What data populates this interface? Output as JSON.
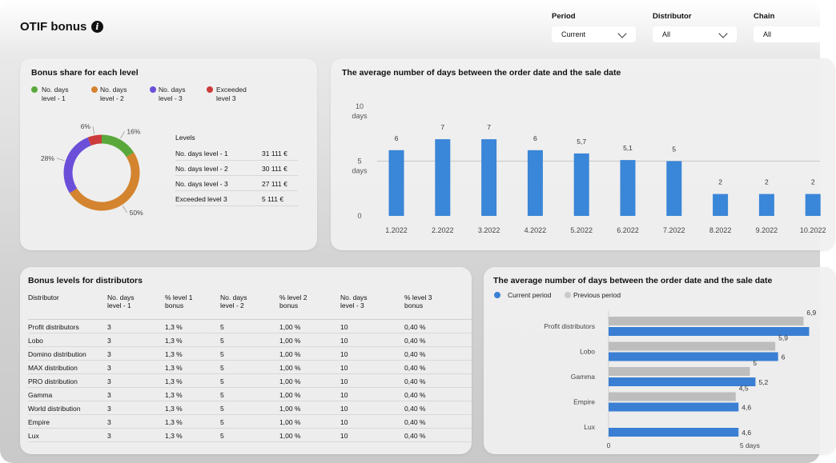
{
  "header": {
    "title": "OTIF bonus",
    "info_icon": "info-icon"
  },
  "filters": [
    {
      "label": "Period",
      "value": "Current"
    },
    {
      "label": "Distributor",
      "value": "All"
    },
    {
      "label": "Chain",
      "value": "All"
    }
  ],
  "bonus_share": {
    "title": "Bonus share for each level",
    "legend": [
      {
        "line1": "No. days",
        "line2": "level - 1",
        "color": "#5aa83c"
      },
      {
        "line1": "No. days",
        "line2": "level - 2",
        "color": "#d4832e"
      },
      {
        "line1": "No. days",
        "line2": "level - 3",
        "color": "#6b4fd8"
      },
      {
        "line1": "Exceeded",
        "line2": "level  3",
        "color": "#cc3b3b"
      }
    ],
    "levels_header": "Levels",
    "levels": [
      {
        "name": "No. days level - 1",
        "value": "31 111 €"
      },
      {
        "name": "No. days  level  - 2",
        "value": "30 111 €"
      },
      {
        "name": "No. days  level  - 3",
        "value": "27 111 €"
      },
      {
        "name": "Exceeded level  3",
        "value": "5 111 €"
      }
    ]
  },
  "bar_chart_title": "The average number of days between the order date and the sale date",
  "distributors": {
    "title": "Bonus levels for distributors",
    "headers": [
      [
        "Distributor",
        ""
      ],
      [
        "No. days",
        "level - 1"
      ],
      [
        "% level 1",
        "bonus"
      ],
      [
        "No. days",
        "level - 2"
      ],
      [
        "% level 2",
        "bonus"
      ],
      [
        "No. days",
        "level - 3"
      ],
      [
        "% level 3",
        "bonus"
      ]
    ],
    "rows": [
      [
        "Profit distributors",
        "3",
        "1,3 %",
        "5",
        "1,00 %",
        "10",
        "0,40 %"
      ],
      [
        "Lobo",
        "3",
        "1,3 %",
        "5",
        "1,00 %",
        "10",
        "0,40 %"
      ],
      [
        "Domino distribution",
        "3",
        "1,3 %",
        "5",
        "1,00 %",
        "10",
        "0,40 %"
      ],
      [
        "MAX distribution",
        "3",
        "1,3 %",
        "5",
        "1,00 %",
        "10",
        "0,40 %"
      ],
      [
        "PRO distribution",
        "3",
        "1,3 %",
        "5",
        "1,00 %",
        "10",
        "0,40 %"
      ],
      [
        "Gamma",
        "3",
        "1,3 %",
        "5",
        "1,00 %",
        "10",
        "0,40 %"
      ],
      [
        "World distribution",
        "3",
        "1,3 %",
        "5",
        "1,00 %",
        "10",
        "0,40 %"
      ],
      [
        "Empire",
        "3",
        "1,3 %",
        "5",
        "1,00 %",
        "10",
        "0,40 %"
      ],
      [
        "Lux",
        "3",
        "1,3 %",
        "5",
        "1,00 %",
        "10",
        "0,40 %"
      ]
    ]
  },
  "hbar_chart_title": "The average number of days between the order date and the sale date",
  "chart_data": [
    {
      "type": "pie",
      "title": "",
      "categories": [
        "No. days level - 1",
        "No. days level - 2",
        "No. days level - 3",
        "Exceeded level  3"
      ],
      "values": [
        16,
        50,
        28,
        6
      ],
      "value_labels": [
        "16%",
        "50%",
        "28%",
        "6%"
      ],
      "colors": [
        "#5aa83c",
        "#d4832e",
        "#6b4fd8",
        "#cc3b3b"
      ],
      "donut": true
    },
    {
      "type": "bar",
      "title": "",
      "categories": [
        "1.2022",
        "2.2022",
        "3.2022",
        "4.2022",
        "5.2022",
        "6.2022",
        "7.2022",
        "8.2022",
        "9.2022",
        "10.2022"
      ],
      "values": [
        6,
        7,
        7,
        6,
        5.7,
        5.1,
        5,
        2,
        2,
        2
      ],
      "value_labels": [
        "6",
        "7",
        "7",
        "6",
        "5,7",
        "5,1",
        "5",
        "2",
        "2",
        "2"
      ],
      "y_ticks": [
        {
          "value": 0,
          "label": "0",
          "unit": ""
        },
        {
          "value": 5,
          "label": "5",
          "unit": "days"
        },
        {
          "value": 10,
          "label": "10",
          "unit": "days"
        }
      ],
      "ylim": [
        0,
        10
      ],
      "color": "#3a86d8",
      "grid": true
    },
    {
      "type": "bar",
      "orientation": "horizontal",
      "title": "",
      "categories": [
        "Profit distributors",
        "Lobo",
        "Gamma",
        "Empire",
        "Lux"
      ],
      "series": [
        {
          "name": "Previous period",
          "values": [
            6.9,
            5.9,
            5,
            4.5,
            null
          ],
          "labels": [
            "6,9",
            "5,9",
            "5",
            "4,5",
            ""
          ],
          "color": "#bdbdbd"
        },
        {
          "name": "Current period",
          "values": [
            7.1,
            6,
            5.2,
            4.6,
            4.6
          ],
          "labels": [
            "",
            "6",
            "5,2",
            "4,6",
            "4,6"
          ],
          "color": "#3a7fd4"
        }
      ],
      "legend_order": [
        "Current period",
        "Previous period"
      ],
      "x_ticks": [
        {
          "value": 0,
          "label": "0"
        },
        {
          "value": 5,
          "label": "5 days"
        }
      ],
      "xlim": [
        0,
        7.2
      ],
      "legend_placement": "top-left"
    }
  ]
}
